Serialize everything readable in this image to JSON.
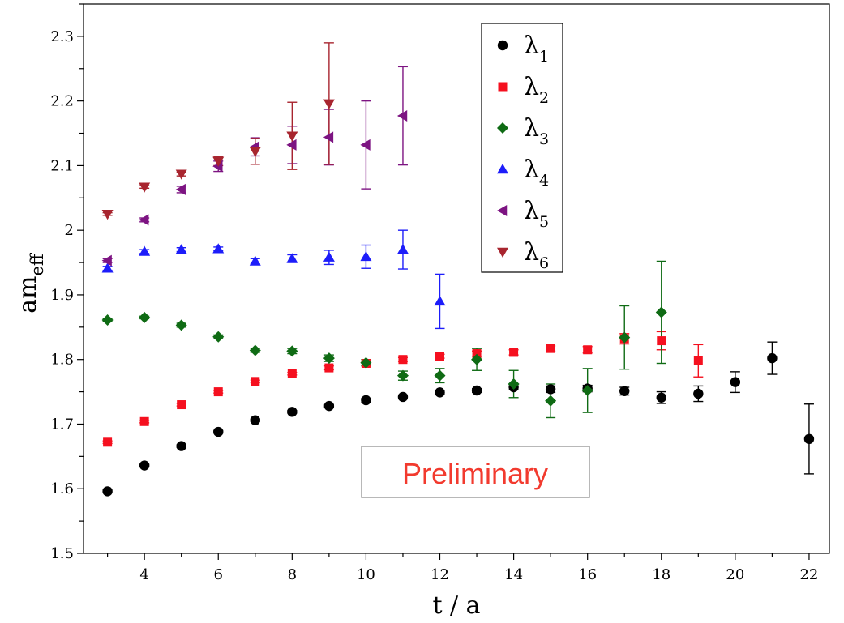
{
  "chart_data": {
    "type": "scatter",
    "title": "",
    "xlabel": "t / a",
    "ylabel_main": "am",
    "ylabel_sub": "eff",
    "xlim": [
      2.35,
      22.55
    ],
    "ylim": [
      1.5,
      2.35
    ],
    "xticks": [
      4,
      6,
      8,
      10,
      12,
      14,
      16,
      18,
      20,
      22
    ],
    "yticks": [
      1.5,
      1.6,
      1.7,
      1.8,
      1.9,
      2.0,
      2.1,
      2.2,
      2.3
    ],
    "ytick_labels": [
      "1.5",
      "1.6",
      "1.7",
      "1.8",
      "1.9",
      "2",
      "2.1",
      "2.2",
      "2.3"
    ],
    "grid": false,
    "legend_position": "top-right",
    "annotation": {
      "text": "Preliminary",
      "color": "#f23a2e"
    },
    "series": [
      {
        "name": "λ",
        "sub": "1",
        "color": "#000000",
        "marker": "circle",
        "points": [
          {
            "x": 3,
            "y": 1.596,
            "err": 0.002
          },
          {
            "x": 4,
            "y": 1.636,
            "err": 0.002
          },
          {
            "x": 5,
            "y": 1.666,
            "err": 0.002
          },
          {
            "x": 6,
            "y": 1.688,
            "err": 0.002
          },
          {
            "x": 7,
            "y": 1.706,
            "err": 0.002
          },
          {
            "x": 8,
            "y": 1.719,
            "err": 0.002
          },
          {
            "x": 9,
            "y": 1.728,
            "err": 0.002
          },
          {
            "x": 10,
            "y": 1.737,
            "err": 0.003
          },
          {
            "x": 11,
            "y": 1.742,
            "err": 0.003
          },
          {
            "x": 12,
            "y": 1.749,
            "err": 0.003
          },
          {
            "x": 13,
            "y": 1.752,
            "err": 0.003
          },
          {
            "x": 14,
            "y": 1.757,
            "err": 0.004
          },
          {
            "x": 15,
            "y": 1.754,
            "err": 0.005
          },
          {
            "x": 16,
            "y": 1.755,
            "err": 0.005
          },
          {
            "x": 17,
            "y": 1.751,
            "err": 0.006
          },
          {
            "x": 18,
            "y": 1.741,
            "err": 0.009
          },
          {
            "x": 19,
            "y": 1.747,
            "err": 0.012
          },
          {
            "x": 20,
            "y": 1.765,
            "err": 0.016
          },
          {
            "x": 21,
            "y": 1.802,
            "err": 0.025
          },
          {
            "x": 22,
            "y": 1.677,
            "err": 0.054
          }
        ]
      },
      {
        "name": "λ",
        "sub": "2",
        "color": "#f5101f",
        "marker": "square",
        "points": [
          {
            "x": 3,
            "y": 1.672,
            "err": 0.002
          },
          {
            "x": 4,
            "y": 1.704,
            "err": 0.002
          },
          {
            "x": 5,
            "y": 1.73,
            "err": 0.002
          },
          {
            "x": 6,
            "y": 1.75,
            "err": 0.002
          },
          {
            "x": 7,
            "y": 1.766,
            "err": 0.002
          },
          {
            "x": 8,
            "y": 1.778,
            "err": 0.002
          },
          {
            "x": 9,
            "y": 1.787,
            "err": 0.003
          },
          {
            "x": 10,
            "y": 1.794,
            "err": 0.003
          },
          {
            "x": 11,
            "y": 1.8,
            "err": 0.003
          },
          {
            "x": 12,
            "y": 1.805,
            "err": 0.003
          },
          {
            "x": 13,
            "y": 1.809,
            "err": 0.004
          },
          {
            "x": 14,
            "y": 1.811,
            "err": 0.004
          },
          {
            "x": 15,
            "y": 1.817,
            "err": 0.004
          },
          {
            "x": 16,
            "y": 1.815,
            "err": 0.005
          },
          {
            "x": 17,
            "y": 1.832,
            "err": 0.008
          },
          {
            "x": 18,
            "y": 1.829,
            "err": 0.014
          },
          {
            "x": 19,
            "y": 1.798,
            "err": 0.025
          }
        ]
      },
      {
        "name": "λ",
        "sub": "3",
        "color": "#0f6b14",
        "marker": "diamond",
        "points": [
          {
            "x": 3,
            "y": 1.861,
            "err": 0.002
          },
          {
            "x": 4,
            "y": 1.865,
            "err": 0.002
          },
          {
            "x": 5,
            "y": 1.853,
            "err": 0.003
          },
          {
            "x": 6,
            "y": 1.835,
            "err": 0.003
          },
          {
            "x": 7,
            "y": 1.814,
            "err": 0.003
          },
          {
            "x": 8,
            "y": 1.813,
            "err": 0.004
          },
          {
            "x": 9,
            "y": 1.802,
            "err": 0.005
          },
          {
            "x": 10,
            "y": 1.795,
            "err": 0.005
          },
          {
            "x": 11,
            "y": 1.775,
            "err": 0.007
          },
          {
            "x": 12,
            "y": 1.775,
            "err": 0.011
          },
          {
            "x": 13,
            "y": 1.8,
            "err": 0.017
          },
          {
            "x": 14,
            "y": 1.762,
            "err": 0.021
          },
          {
            "x": 15,
            "y": 1.736,
            "err": 0.026
          },
          {
            "x": 16,
            "y": 1.752,
            "err": 0.034
          },
          {
            "x": 17,
            "y": 1.834,
            "err": 0.049
          },
          {
            "x": 18,
            "y": 1.873,
            "err": 0.079
          }
        ]
      },
      {
        "name": "λ",
        "sub": "4",
        "color": "#1d1dfa",
        "marker": "triangle-up",
        "points": [
          {
            "x": 3,
            "y": 1.941,
            "err": 0.003
          },
          {
            "x": 4,
            "y": 1.967,
            "err": 0.003
          },
          {
            "x": 5,
            "y": 1.97,
            "err": 0.003
          },
          {
            "x": 6,
            "y": 1.971,
            "err": 0.003
          },
          {
            "x": 7,
            "y": 1.952,
            "err": 0.004
          },
          {
            "x": 8,
            "y": 1.956,
            "err": 0.006
          },
          {
            "x": 9,
            "y": 1.958,
            "err": 0.011
          },
          {
            "x": 10,
            "y": 1.959,
            "err": 0.018
          },
          {
            "x": 11,
            "y": 1.97,
            "err": 0.03
          },
          {
            "x": 12,
            "y": 1.89,
            "err": 0.042
          }
        ]
      },
      {
        "name": "λ",
        "sub": "5",
        "color": "#7d1482",
        "marker": "triangle-left",
        "points": [
          {
            "x": 3,
            "y": 1.953,
            "err": 0.003
          },
          {
            "x": 4,
            "y": 2.016,
            "err": 0.003
          },
          {
            "x": 5,
            "y": 2.063,
            "err": 0.005
          },
          {
            "x": 6,
            "y": 2.099,
            "err": 0.008
          },
          {
            "x": 7,
            "y": 2.129,
            "err": 0.014
          },
          {
            "x": 8,
            "y": 2.132,
            "err": 0.029
          },
          {
            "x": 9,
            "y": 2.144,
            "err": 0.043
          },
          {
            "x": 10,
            "y": 2.132,
            "err": 0.068
          },
          {
            "x": 11,
            "y": 2.177,
            "err": 0.076
          }
        ]
      },
      {
        "name": "λ",
        "sub": "6",
        "color": "#a8252f",
        "marker": "triangle-down",
        "points": [
          {
            "x": 3,
            "y": 2.025,
            "err": 0.002
          },
          {
            "x": 4,
            "y": 2.067,
            "err": 0.002
          },
          {
            "x": 5,
            "y": 2.087,
            "err": 0.003
          },
          {
            "x": 6,
            "y": 2.107,
            "err": 0.007
          },
          {
            "x": 7,
            "y": 2.122,
            "err": 0.02
          },
          {
            "x": 8,
            "y": 2.146,
            "err": 0.052
          },
          {
            "x": 9,
            "y": 2.196,
            "err": 0.094
          }
        ]
      }
    ]
  }
}
